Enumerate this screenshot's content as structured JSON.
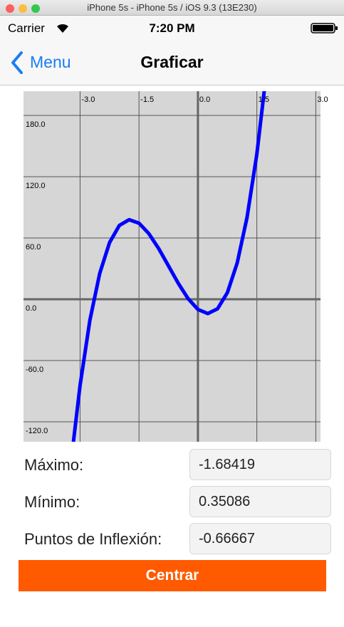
{
  "window": {
    "title": "iPhone 5s - iPhone 5s / iOS 9.3 (13E230)"
  },
  "status_bar": {
    "carrier": "Carrier",
    "time": "7:20 PM"
  },
  "nav_bar": {
    "back": "Menu",
    "title": "Graficar"
  },
  "chart_data": {
    "type": "line",
    "color": "#0000ff",
    "grid": true,
    "x": [
      -3.2,
      -3.0,
      -2.75,
      -2.5,
      -2.25,
      -2.0,
      -1.75,
      -1.5,
      -1.25,
      -1.0,
      -0.75,
      -0.5,
      -0.25,
      0,
      0.25,
      0.5,
      0.75,
      1.0,
      1.25,
      1.5,
      1.75
    ],
    "values": [
      -149.6,
      -84.3,
      -20.5,
      25.3,
      55.5,
      72.3,
      77.9,
      74.5,
      64.3,
      49.7,
      32.7,
      15.6,
      0.6,
      -10,
      -14.0,
      -9.3,
      6.5,
      35.6,
      80.1,
      142.2,
      224.3
    ],
    "xlim": [
      -4.44,
      3.12
    ],
    "ylim": [
      -139.5,
      203.7
    ],
    "xticks": [
      {
        "value": -3,
        "label": "-3.0"
      },
      {
        "value": -1.5,
        "label": "-1.5"
      },
      {
        "value": 0,
        "label": "0.0"
      },
      {
        "value": 1.5,
        "label": "1.5"
      },
      {
        "value": 3,
        "label": "3.0"
      }
    ],
    "yticks": [
      {
        "value": -120,
        "label": "-120.0"
      },
      {
        "value": -60,
        "label": "-60.0"
      },
      {
        "value": 0,
        "label": "0.0"
      },
      {
        "value": 60,
        "label": "60.0"
      },
      {
        "value": 120,
        "label": "120.0"
      },
      {
        "value": 180,
        "label": "180.0"
      }
    ]
  },
  "fields": [
    {
      "label": "Máximo:",
      "value": "-1.68419"
    },
    {
      "label": "Mínimo:",
      "value": "0.35086"
    },
    {
      "label": "Puntos de Inflexión:",
      "value": "-0.66667"
    }
  ],
  "button": "Centrar"
}
